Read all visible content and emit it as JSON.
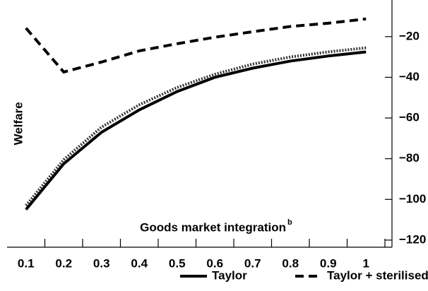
{
  "chart_data": {
    "type": "line",
    "y_label": "Welfare",
    "x_label": "Goods market integration",
    "x_label_note": "b",
    "categories": [
      "0.1",
      "0.2",
      "0.3",
      "0.4",
      "0.5",
      "0.6",
      "0.7",
      "0.8",
      "0.9",
      "1"
    ],
    "series": [
      {
        "name": "Taylor",
        "color": "#000000",
        "line_style": "solid",
        "values": [
          -105,
          -82.5,
          -67,
          -56,
          -47,
          -40,
          -35.5,
          -32,
          -29.5,
          -27.5
        ]
      },
      {
        "color": "#333333",
        "line_style": "dotted",
        "values": [
          -103,
          -80.5,
          -64.5,
          -53.5,
          -45,
          -38.5,
          -33.5,
          -30,
          -27.5,
          -25.5
        ]
      },
      {
        "name": "Taylor + sterilised",
        "color": "#000000",
        "line_style": "dashed",
        "values": [
          -15.8,
          -37.4,
          -32.5,
          -27,
          -23.5,
          -20.3,
          -17.6,
          -15,
          -13.4,
          -11.3
        ]
      }
    ],
    "ylim": [
      -123.5,
      -2
    ],
    "yticks": [
      {
        "value": -20,
        "label": "−20"
      },
      {
        "value": -40,
        "label": "−40"
      },
      {
        "value": -60,
        "label": "−60"
      },
      {
        "value": -80,
        "label": "−80"
      },
      {
        "value": -100,
        "label": "−100"
      },
      {
        "value": -120,
        "label": "−120"
      }
    ],
    "y_axis_side": "right",
    "legend": "bottom"
  }
}
